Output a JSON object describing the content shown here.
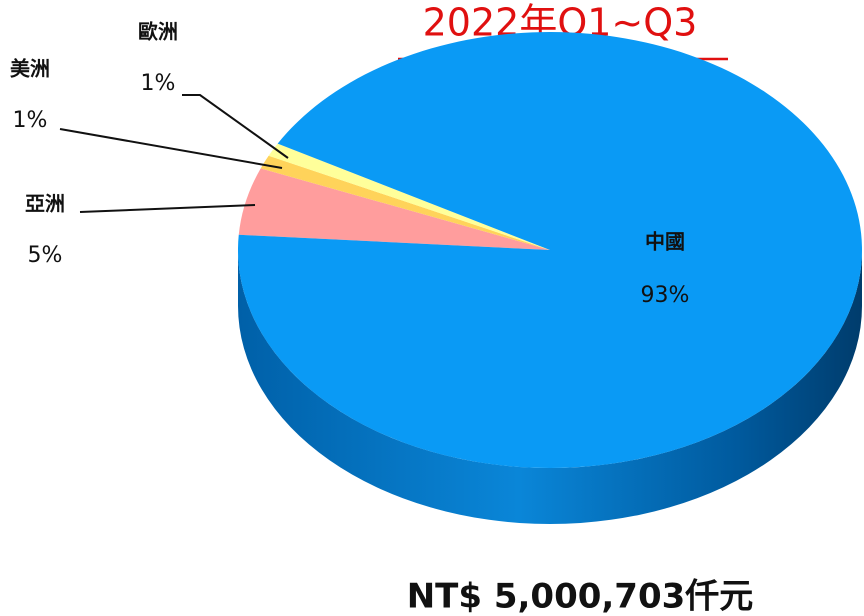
{
  "chart_data": {
    "type": "pie3d",
    "title": "2022年Q1~Q3",
    "footer": "NT$ 5,000,703仟元",
    "categories": [
      "亞洲",
      "美洲",
      "歐洲",
      "中國"
    ],
    "values": [
      5,
      1,
      1,
      93
    ],
    "value_labels": [
      "5%",
      "1%",
      "1%",
      "93%"
    ],
    "colors": [
      "#ff9d9d",
      "#ffd35a",
      "#ffff9a",
      "#0a9af5"
    ]
  }
}
